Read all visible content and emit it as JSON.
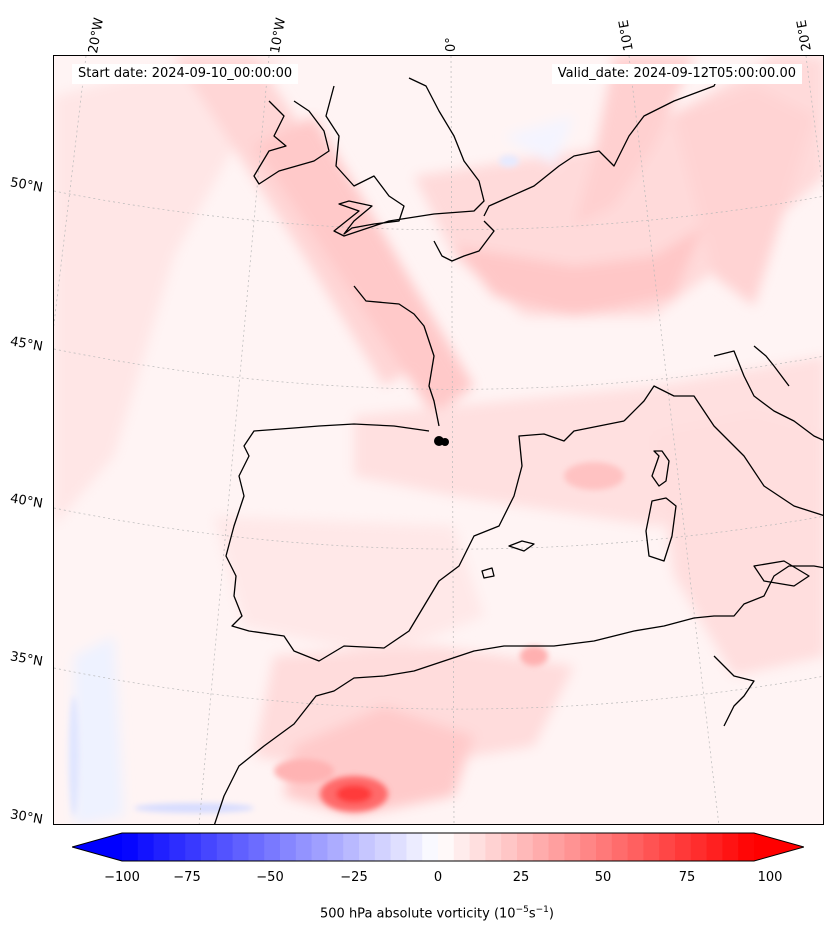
{
  "header": {
    "start_date": "Start date: 2024-09-10_00:00:00",
    "valid_date": "Valid_date: 2024-09-12T05:00:00.00"
  },
  "longitude_labels": [
    "20°W",
    "10°W",
    "0°",
    "10°E",
    "20°E"
  ],
  "latitude_labels": [
    "50°N",
    "45°N",
    "40°N",
    "35°N",
    "30°N"
  ],
  "colorbar": {
    "ticks": [
      "−100",
      "−75",
      "−50",
      "−25",
      "0",
      "25",
      "50",
      "75",
      "100"
    ],
    "label_prefix": "500 hPa absolute vorticity (10",
    "label_exp1": "−5",
    "label_mid": "s",
    "label_exp2": "−1",
    "label_suffix": ")",
    "min": -100,
    "max": 100,
    "neg_color": "#0000ff",
    "pos_color": "#ff0000"
  },
  "map": {
    "field_name": "500 hPa absolute vorticity",
    "background_color": "#fff6f6",
    "coastline_color": "#000000",
    "marker": "black dot (station marker)"
  }
}
